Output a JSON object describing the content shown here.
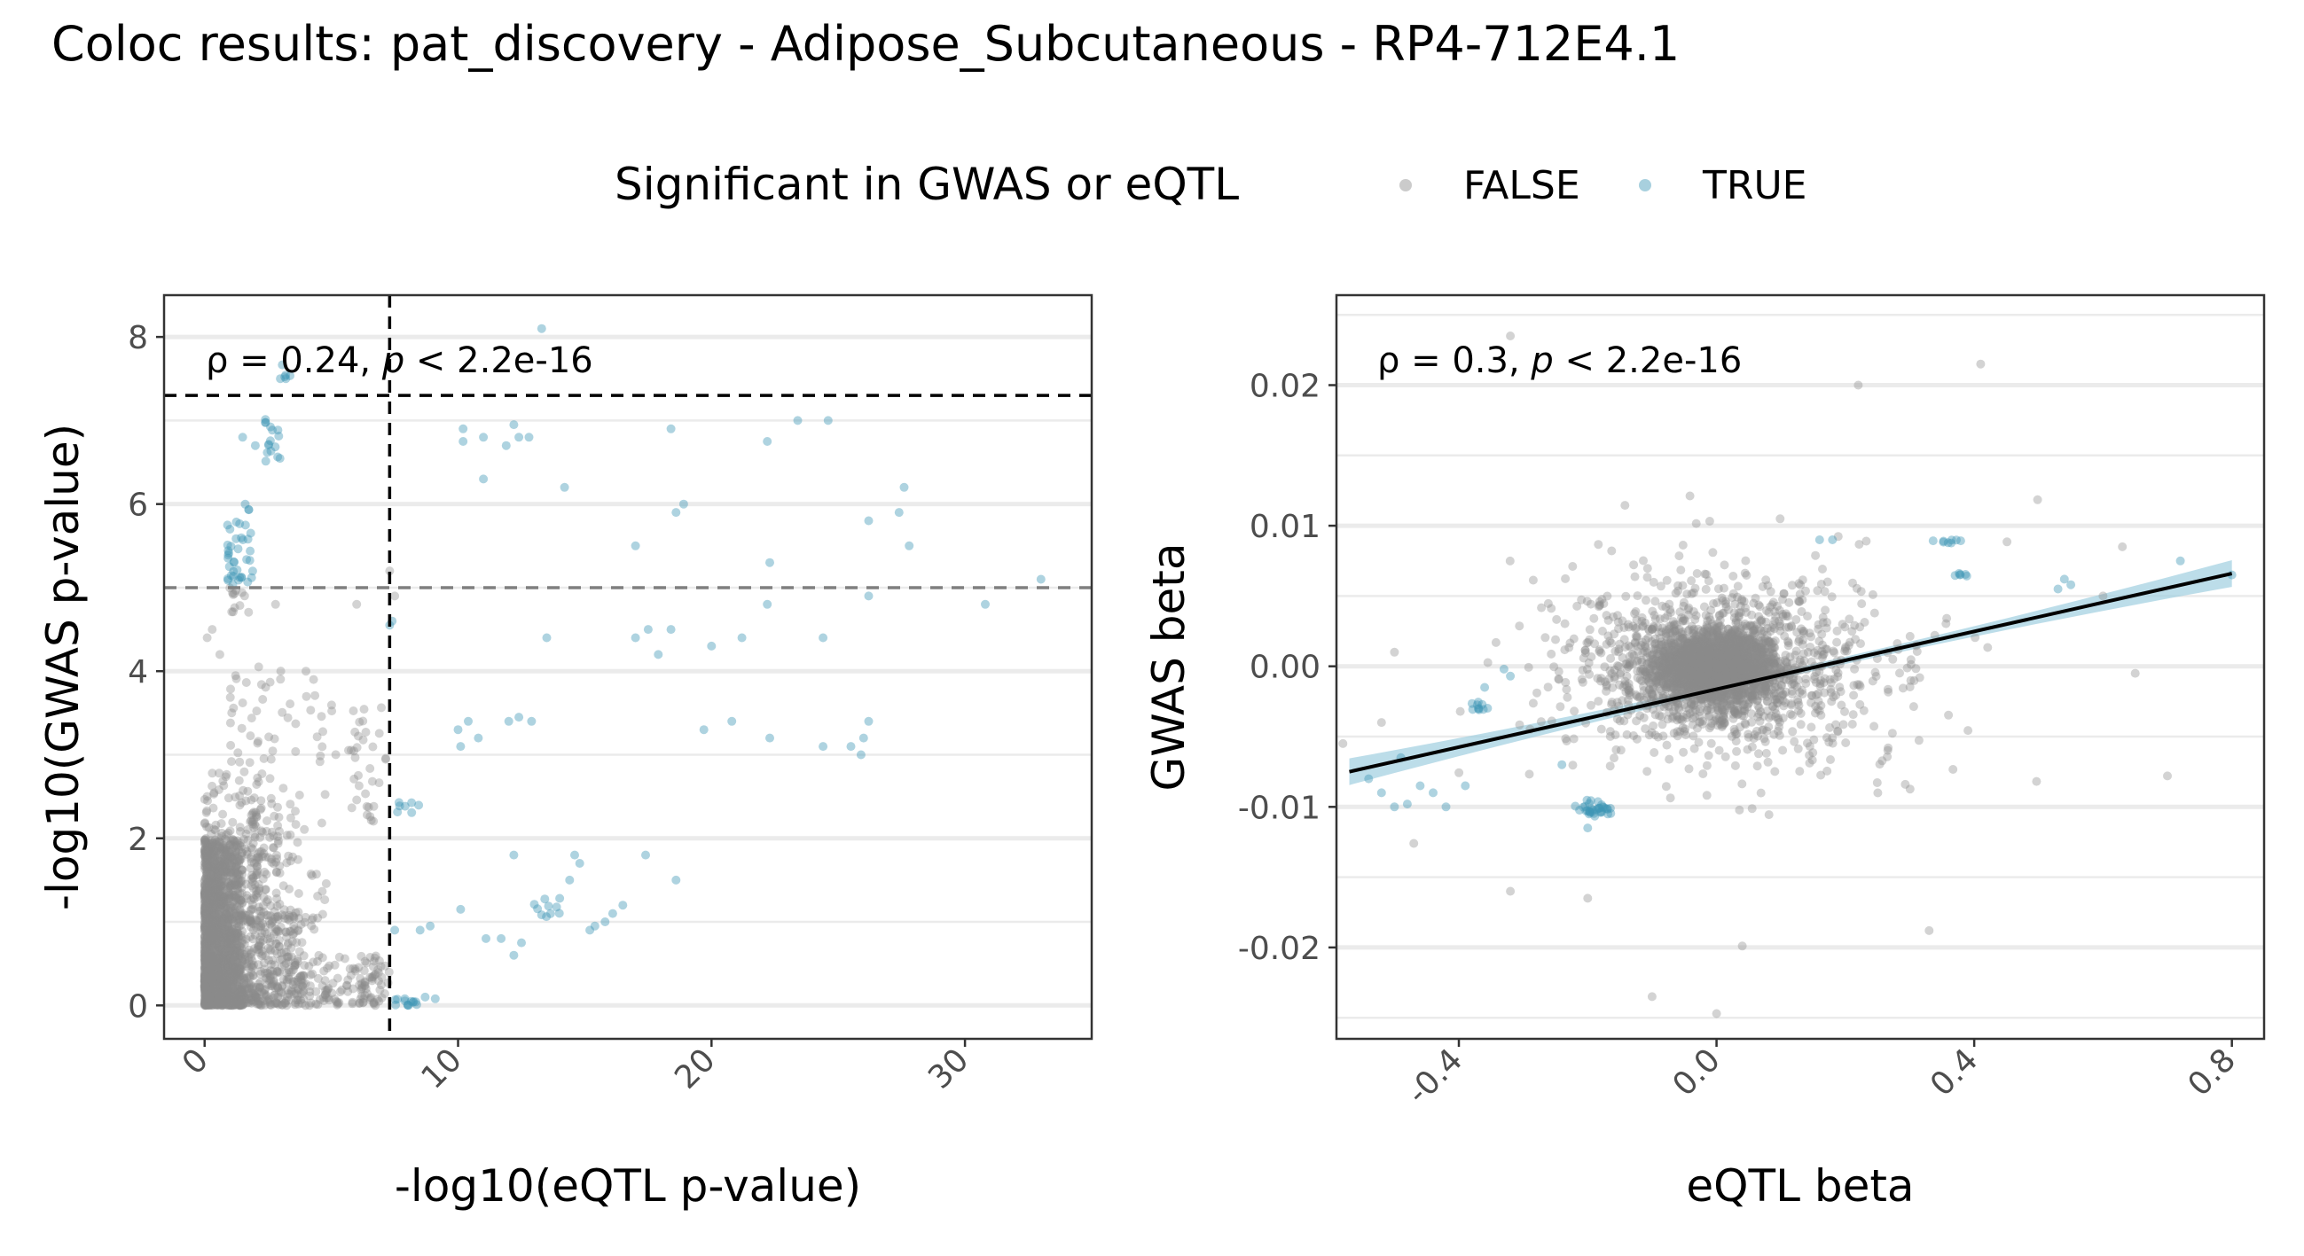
{
  "title": "Coloc results: pat_discovery - Adipose_Subcutaneous - RP4-712E4.1",
  "legend": {
    "title": "Significant in GWAS or eQTL",
    "items": [
      {
        "label": "FALSE",
        "color": "#8c8c8c"
      },
      {
        "label": "TRUE",
        "color": "#3d97b5"
      }
    ]
  },
  "colors": {
    "false": "#8c8c8c",
    "true": "#3d97b5",
    "fit_line": "#000000",
    "fit_band": "#9fcfdf"
  },
  "chart_data": [
    {
      "type": "scatter",
      "xlabel": "-log10(eQTL p-value)",
      "ylabel": "-log10(GWAS p-value)",
      "xlim": [
        -1.6,
        35
      ],
      "ylim": [
        -0.4,
        8.5
      ],
      "xticks": [
        "0",
        "10",
        "20",
        "30"
      ],
      "yticks": [
        "0",
        "2",
        "4",
        "6",
        "8"
      ],
      "annotation": {
        "rho": "ρ = 0.24, ",
        "p": "p",
        "rest": " < 2.2e-16"
      },
      "hlines": [
        {
          "y": 7.3,
          "style": "dashed",
          "color": "#000000"
        },
        {
          "y": 5.0,
          "style": "dashed",
          "color": "#7f7f7f"
        }
      ],
      "vlines": [
        {
          "x": 7.3,
          "style": "dashed",
          "color": "#000000"
        }
      ],
      "grid": true,
      "series": [
        {
          "name": "FALSE",
          "clusters": [
            {
              "x": [
                0,
                1.5
              ],
              "y": [
                0,
                2.0
              ],
              "n": 1300
            },
            {
              "x": [
                0,
                4.0
              ],
              "y": [
                0,
                1.1
              ],
              "n": 500
            },
            {
              "x": [
                0,
                7.0
              ],
              "y": [
                0,
                0.6
              ],
              "n": 300
            },
            {
              "x": [
                0,
                3.0
              ],
              "y": [
                1.0,
                2.8
              ],
              "n": 220
            },
            {
              "x": [
                1.8,
                4.8
              ],
              "y": [
                0.9,
                2.6
              ],
              "n": 120
            },
            {
              "x": [
                1.0,
                7.0
              ],
              "y": [
                2.9,
                4.1
              ],
              "n": 55
            },
            {
              "x": [
                1.0,
                1.8
              ],
              "y": [
                4.7,
                5.0
              ],
              "n": 12
            },
            {
              "x": [
                5.8,
                7.3
              ],
              "y": [
                2.2,
                3.6
              ],
              "n": 28
            },
            {
              "x": [
                6.3,
                7.3
              ],
              "y": [
                0.1,
                0.5
              ],
              "n": 16
            }
          ],
          "points": [
            [
              0.1,
              4.4
            ],
            [
              0.3,
              4.5
            ],
            [
              0.6,
              4.2
            ],
            [
              4.0,
              4.0
            ],
            [
              4.3,
              3.9
            ],
            [
              2.8,
              4.8
            ],
            [
              6.0,
              4.8
            ],
            [
              7.3,
              5.2
            ],
            [
              7.5,
              4.9
            ]
          ]
        },
        {
          "name": "TRUE",
          "clusters": [
            {
              "x": [
                0.9,
                1.9
              ],
              "y": [
                5.1,
                5.8
              ],
              "n": 32
            },
            {
              "x": [
                0.9,
                1.7
              ],
              "y": [
                5.0,
                5.1
              ],
              "n": 4
            },
            {
              "x": [
                1.6,
                1.9
              ],
              "y": [
                5.9,
                6.1
              ],
              "n": 3
            },
            {
              "x": [
                2.4,
                3.0
              ],
              "y": [
                6.5,
                7.1
              ],
              "n": 16
            },
            {
              "x": [
                2.8,
                3.4
              ],
              "y": [
                7.5,
                7.7
              ],
              "n": 6
            },
            {
              "x": [
                7.5,
                8.6
              ],
              "y": [
                0.0,
                0.12
              ],
              "n": 12
            },
            {
              "x": [
                7.6,
                8.6
              ],
              "y": [
                2.3,
                2.45
              ],
              "n": 7
            },
            {
              "x": [
                12.8,
                14.5
              ],
              "y": [
                1.05,
                1.35
              ],
              "n": 10
            }
          ],
          "points": [
            [
              8.5,
              0.9
            ],
            [
              7.5,
              0.9
            ],
            [
              1.0,
              5.7
            ],
            [
              2.0,
              6.7
            ],
            [
              1.5,
              6.8
            ],
            [
              10.2,
              6.9
            ],
            [
              11.0,
              6.8
            ],
            [
              10.2,
              6.75
            ],
            [
              11.9,
              6.7
            ],
            [
              12.2,
              6.95
            ],
            [
              12.4,
              6.8
            ],
            [
              12.8,
              6.8
            ],
            [
              13.3,
              8.1
            ],
            [
              11.0,
              6.3
            ],
            [
              14.2,
              6.2
            ],
            [
              18.4,
              6.9
            ],
            [
              18.6,
              5.9
            ],
            [
              18.9,
              6.0
            ],
            [
              22.2,
              6.75
            ],
            [
              23.4,
              7.0
            ],
            [
              24.6,
              7.0
            ],
            [
              26.2,
              5.8
            ],
            [
              27.4,
              5.9
            ],
            [
              27.6,
              6.2
            ],
            [
              27.8,
              5.5
            ],
            [
              33.0,
              5.1
            ],
            [
              30.8,
              4.8
            ],
            [
              26.2,
              4.9
            ],
            [
              22.3,
              5.3
            ],
            [
              17.0,
              5.5
            ],
            [
              7.4,
              4.6
            ],
            [
              7.3,
              4.55
            ],
            [
              13.5,
              4.4
            ],
            [
              17.0,
              4.4
            ],
            [
              17.5,
              4.5
            ],
            [
              17.9,
              4.2
            ],
            [
              18.4,
              4.5
            ],
            [
              20.0,
              4.3
            ],
            [
              21.2,
              4.4
            ],
            [
              22.2,
              4.8
            ],
            [
              24.4,
              4.4
            ],
            [
              10.0,
              3.3
            ],
            [
              10.4,
              3.4
            ],
            [
              10.8,
              3.2
            ],
            [
              12.0,
              3.4
            ],
            [
              12.4,
              3.45
            ],
            [
              12.9,
              3.4
            ],
            [
              10.1,
              3.1
            ],
            [
              19.7,
              3.3
            ],
            [
              20.8,
              3.4
            ],
            [
              22.3,
              3.2
            ],
            [
              24.4,
              3.1
            ],
            [
              25.5,
              3.1
            ],
            [
              26.0,
              3.2
            ],
            [
              26.2,
              3.4
            ],
            [
              25.9,
              3.0
            ],
            [
              12.2,
              1.8
            ],
            [
              14.6,
              1.8
            ],
            [
              14.8,
              1.7
            ],
            [
              17.4,
              1.8
            ],
            [
              18.6,
              1.5
            ],
            [
              14.4,
              1.5
            ],
            [
              16.1,
              1.1
            ],
            [
              15.4,
              0.95
            ],
            [
              15.8,
              1.0
            ],
            [
              15.2,
              0.9
            ],
            [
              16.5,
              1.2
            ],
            [
              11.1,
              0.8
            ],
            [
              11.7,
              0.8
            ],
            [
              12.5,
              0.75
            ],
            [
              12.2,
              0.6
            ],
            [
              10.1,
              1.15
            ],
            [
              8.9,
              0.95
            ],
            [
              7.9,
              0.08
            ],
            [
              8.7,
              0.1
            ],
            [
              9.1,
              0.08
            ]
          ]
        }
      ]
    },
    {
      "type": "scatter",
      "xlabel": "eQTL beta",
      "ylabel": "GWAS beta",
      "xlim": [
        -0.59,
        0.85
      ],
      "ylim": [
        -0.0265,
        0.0264
      ],
      "xticks": [
        "-0.4",
        "0.0",
        "0.4",
        "0.8"
      ],
      "yticks": [
        "0.02",
        "0.01",
        "0.00",
        "-0.01",
        "-0.02"
      ],
      "annotation": {
        "rho": "ρ = 0.3, ",
        "p": "p",
        "rest": " < 2.2e-16"
      },
      "fit": {
        "x": [
          -0.57,
          0.8
        ],
        "y": [
          -0.0075,
          0.0066
        ]
      },
      "grid": true,
      "series": [
        {
          "name": "FALSE",
          "clusters": [
            {
              "x": [
                -0.12,
                0.12
              ],
              "y": [
                -0.003,
                0.003
              ],
              "n": 1500
            },
            {
              "x": [
                -0.22,
                0.22
              ],
              "y": [
                -0.006,
                0.006
              ],
              "n": 1000
            },
            {
              "x": [
                -0.38,
                0.38
              ],
              "y": [
                -0.01,
                0.01
              ],
              "n": 650
            },
            {
              "x": [
                -0.5,
                0.62
              ],
              "y": [
                -0.015,
                0.016
              ],
              "n": 180
            }
          ],
          "points": [
            [
              -0.32,
              0.0235
            ],
            [
              0.41,
              0.0215
            ],
            [
              0.22,
              0.02
            ],
            [
              -0.1,
              -0.0235
            ],
            [
              -0.0,
              -0.0247
            ],
            [
              0.04,
              -0.0199
            ],
            [
              0.33,
              -0.0188
            ],
            [
              -0.32,
              -0.016
            ],
            [
              -0.2,
              -0.0165
            ],
            [
              0.7,
              -0.0078
            ],
            [
              0.65,
              -0.0005
            ],
            [
              0.63,
              0.0085
            ],
            [
              0.6,
              0.005
            ],
            [
              -0.5,
              0.001
            ],
            [
              -0.52,
              -0.004
            ],
            [
              -0.58,
              -0.0055
            ],
            [
              -0.47,
              -0.0126
            ]
          ]
        },
        {
          "name": "TRUE",
          "clusters": [
            {
              "x": [
                -0.23,
                -0.15
              ],
              "y": [
                -0.011,
                -0.0092
              ],
              "n": 35
            },
            {
              "x": [
                -0.4,
                -0.33
              ],
              "y": [
                -0.0035,
                -0.002
              ],
              "n": 10
            },
            {
              "x": [
                0.32,
                0.4
              ],
              "y": [
                0.0087,
                0.0091
              ],
              "n": 8
            },
            {
              "x": [
                0.35,
                0.4
              ],
              "y": [
                0.0063,
                0.0067
              ],
              "n": 6
            }
          ],
          "points": [
            [
              -0.32,
              -0.0007
            ],
            [
              -0.33,
              -0.0002
            ],
            [
              -0.36,
              -0.0015
            ],
            [
              0.16,
              0.009
            ],
            [
              0.18,
              0.009
            ],
            [
              0.53,
              0.0055
            ],
            [
              0.55,
              0.0058
            ],
            [
              0.54,
              0.0062
            ],
            [
              0.8,
              0.0065
            ],
            [
              0.72,
              0.0075
            ],
            [
              -0.54,
              -0.008
            ],
            [
              -0.52,
              -0.009
            ],
            [
              -0.5,
              -0.01
            ],
            [
              -0.48,
              -0.0098
            ],
            [
              -0.46,
              -0.0085
            ],
            [
              -0.44,
              -0.009
            ],
            [
              -0.42,
              -0.01
            ],
            [
              -0.49,
              -0.0065
            ],
            [
              -0.24,
              -0.007
            ],
            [
              -0.39,
              -0.0085
            ],
            [
              -0.2,
              -0.0115
            ]
          ]
        }
      ]
    }
  ]
}
